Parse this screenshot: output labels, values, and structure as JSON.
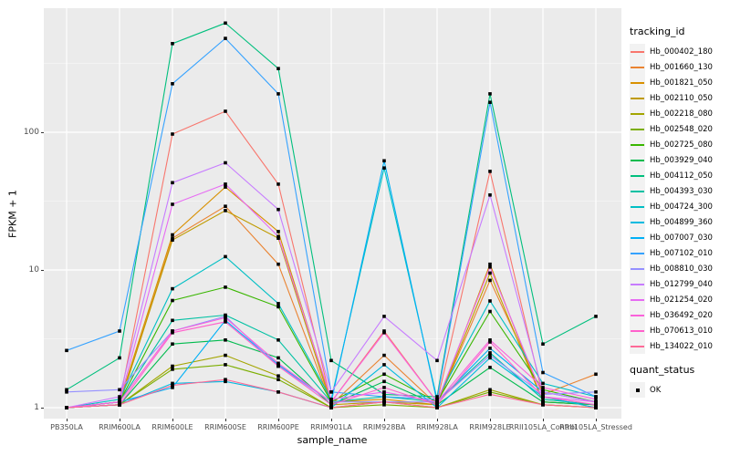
{
  "figure": {
    "background": "#FFFFFF",
    "panel_background": "#EBEBEB",
    "gridline_color": "#FFFFFF",
    "axis_text_color": "#4D4D4D",
    "point_color": "#000000"
  },
  "axes": {
    "x_title": "sample_name",
    "y_title": "FPKM + 1"
  },
  "legend": {
    "tracking_title": "tracking_id",
    "quant_title": "quant_status",
    "quant_value": "OK"
  },
  "chart_data": {
    "type": "line",
    "title": "",
    "xlabel": "sample_name",
    "ylabel": "FPKM + 1",
    "y_scale": "log10",
    "y_major_ticks": [
      1,
      10,
      100
    ],
    "y_minor_ticks": [
      3.162,
      31.62,
      316.2
    ],
    "ylim_log10": [
      -0.08,
      2.92
    ],
    "grid": true,
    "legend_position": "right",
    "point_marker": "black-square",
    "categories": [
      "PB350LA",
      "RRIM600LA",
      "RRIM600LE",
      "RRIM600SE",
      "RRIM600PE",
      "RRIM901LA",
      "RRIM928BA",
      "RRIM928LA",
      "RRIM928LE",
      "RRII105LA_Control",
      "RRII105LA_Stressed"
    ],
    "series": [
      {
        "name": "Hb_000402_180",
        "color": "#F8766D",
        "values": [
          1.0,
          1.1,
          97,
          142,
          42,
          1.1,
          3.6,
          1.1,
          52,
          1.2,
          1.0
        ]
      },
      {
        "name": "Hb_001660_130",
        "color": "#EA8331",
        "values": [
          1.0,
          1.05,
          17,
          29,
          11,
          1.05,
          2.4,
          1.05,
          8.4,
          1.25,
          1.75
        ]
      },
      {
        "name": "Hb_001821_050",
        "color": "#D89000",
        "values": [
          1.0,
          1.1,
          18,
          40,
          19,
          1.1,
          1.15,
          1.05,
          11,
          1.1,
          1.05
        ]
      },
      {
        "name": "Hb_002110_050",
        "color": "#C09B00",
        "values": [
          1.0,
          1.05,
          16.5,
          27,
          17,
          1.05,
          1.1,
          1.05,
          9.5,
          1.1,
          1.05
        ]
      },
      {
        "name": "Hb_002218_080",
        "color": "#A3A500",
        "values": [
          1.0,
          1.05,
          2.0,
          2.4,
          1.7,
          1.0,
          1.1,
          1.0,
          1.35,
          1.05,
          1.0
        ]
      },
      {
        "name": "Hb_002548_020",
        "color": "#7CAE00",
        "values": [
          1.0,
          1.05,
          1.9,
          2.05,
          1.6,
          1.0,
          1.05,
          1.0,
          1.3,
          1.05,
          1.0
        ]
      },
      {
        "name": "Hb_002725_080",
        "color": "#39B600",
        "values": [
          1.0,
          1.1,
          6.0,
          7.5,
          5.4,
          1.1,
          1.75,
          1.1,
          5.0,
          1.35,
          1.1
        ]
      },
      {
        "name": "Hb_003929_040",
        "color": "#00BB4E",
        "values": [
          1.0,
          1.05,
          2.9,
          3.1,
          2.3,
          1.05,
          1.55,
          1.05,
          1.96,
          1.1,
          1.05
        ]
      },
      {
        "name": "Hb_004112_050",
        "color": "#00BF7D",
        "values": [
          1.35,
          2.3,
          440,
          620,
          290,
          2.2,
          1.25,
          1.2,
          190,
          2.9,
          4.6
        ]
      },
      {
        "name": "Hb_004393_030",
        "color": "#00C1A3",
        "values": [
          1.0,
          1.1,
          4.3,
          4.7,
          3.1,
          1.1,
          1.2,
          1.1,
          2.5,
          1.15,
          1.05
        ]
      },
      {
        "name": "Hb_004724_300",
        "color": "#00BFC4",
        "values": [
          1.0,
          1.15,
          7.3,
          12.5,
          5.7,
          1.15,
          55,
          1.15,
          5.95,
          1.5,
          1.2
        ]
      },
      {
        "name": "Hb_004899_360",
        "color": "#00BAE0",
        "values": [
          1.0,
          1.05,
          1.5,
          1.55,
          1.3,
          1.0,
          2.05,
          1.0,
          2.3,
          1.2,
          1.0
        ]
      },
      {
        "name": "Hb_007007_030",
        "color": "#00B0F6",
        "values": [
          1.0,
          1.1,
          1.4,
          4.3,
          2.05,
          1.1,
          62,
          1.1,
          2.7,
          1.3,
          1.1
        ]
      },
      {
        "name": "Hb_007102_010",
        "color": "#35A2FF",
        "values": [
          2.6,
          3.6,
          225,
          480,
          190,
          1.3,
          1.2,
          1.15,
          165,
          1.8,
          1.2
        ]
      },
      {
        "name": "Hb_008810_030",
        "color": "#9590FF",
        "values": [
          1.3,
          1.35,
          3.6,
          4.6,
          2.0,
          1.1,
          1.1,
          1.1,
          2.4,
          1.25,
          1.3
        ]
      },
      {
        "name": "Hb_012799_040",
        "color": "#C77CFF",
        "values": [
          1.0,
          1.2,
          43,
          60,
          27.5,
          1.3,
          4.6,
          2.2,
          35,
          1.3,
          1.1
        ]
      },
      {
        "name": "Hb_021254_020",
        "color": "#E76BF3",
        "values": [
          1.0,
          1.1,
          30,
          42,
          17.5,
          1.15,
          1.3,
          1.1,
          10.5,
          1.2,
          1.1
        ]
      },
      {
        "name": "Hb_036492_020",
        "color": "#FA62DB",
        "values": [
          1.0,
          1.1,
          3.6,
          4.5,
          2.1,
          1.1,
          3.5,
          1.1,
          3.1,
          1.4,
          1.15
        ]
      },
      {
        "name": "Hb_070613_010",
        "color": "#FF61CC",
        "values": [
          1.0,
          1.05,
          3.5,
          4.2,
          2.0,
          1.05,
          1.4,
          1.05,
          3.0,
          1.2,
          1.05
        ]
      },
      {
        "name": "Hb_134022_010",
        "color": "#FF6A98",
        "values": [
          1.0,
          1.05,
          1.45,
          1.6,
          1.3,
          1.0,
          1.1,
          1.0,
          1.25,
          1.05,
          1.0
        ]
      }
    ]
  }
}
